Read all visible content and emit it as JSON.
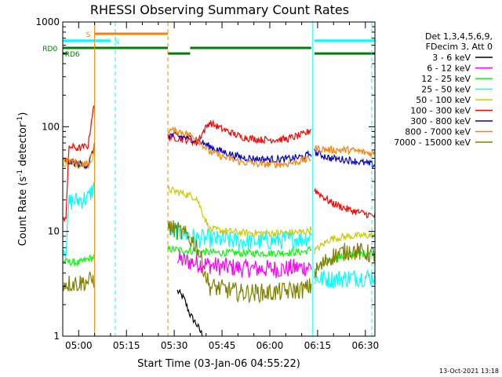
{
  "chart_data": {
    "type": "line",
    "title": "RHESSI Observing Summary Count Rates",
    "xlabel": "Start Time (03-Jan-06 04:55:22)",
    "ylabel": "Count Rate (s",
    "ylabel_sup": "-1",
    "ylabel_tail": " detector",
    "ylabel_close": ")",
    "y_scale": "log",
    "ylim": [
      1,
      1000
    ],
    "y_ticks": [
      {
        "v": 1,
        "label": "1"
      },
      {
        "v": 10,
        "label": "10"
      },
      {
        "v": 100,
        "label": "100"
      },
      {
        "v": 1000,
        "label": "1000"
      }
    ],
    "xlim_min": [
      0,
      98
    ],
    "x_ticks": [
      {
        "m": 5,
        "label": "05:00"
      },
      {
        "m": 20,
        "label": "05:15"
      },
      {
        "m": 35,
        "label": "05:30"
      },
      {
        "m": 50,
        "label": "05:45"
      },
      {
        "m": 65,
        "label": "06:00"
      },
      {
        "m": 80,
        "label": "06:15"
      },
      {
        "m": 95,
        "label": "06:30"
      }
    ],
    "legend_header": [
      "Det 1,3,4,5,6,9,",
      "FDecim 3, Att 0"
    ],
    "timestamp": "13-Oct-2021 13:18",
    "gaps_min": [
      [
        10,
        33
      ],
      [
        78,
        79
      ]
    ],
    "segments": [
      [
        0,
        10
      ],
      [
        33,
        78
      ],
      [
        79,
        98
      ]
    ],
    "flags": [
      {
        "label": "S",
        "color": "#ff8000",
        "y": 772,
        "x0": 10,
        "x1": 33,
        "label_at": 8
      },
      {
        "label": "N",
        "color": "#00ffff",
        "y": 663,
        "x0": 0,
        "x1": 15,
        "label_at": 17
      },
      {
        "label": "N",
        "color": "#00ffff",
        "y": 663,
        "x0": 79,
        "x1": 98,
        "label_at": null
      },
      {
        "label": "RD0",
        "color": "#008000",
        "y": 565,
        "x0": 0,
        "x1": 33,
        "label_at": -4
      },
      {
        "label": "RD0",
        "color": "#008000",
        "y": 565,
        "x0": 40,
        "x1": 78,
        "label_at": null
      },
      {
        "label": "RD6",
        "color": "#008000",
        "y": 500,
        "x0": 0,
        "x1": 1.5,
        "label_at": 3
      },
      {
        "label": "RD6",
        "color": "#008000",
        "y": 500,
        "x0": 33,
        "x1": 40,
        "label_at": null
      },
      {
        "label": "RD6",
        "color": "#008000",
        "y": 500,
        "x0": 79,
        "x1": 98,
        "label_at": null
      }
    ],
    "vlines": [
      {
        "m": 10,
        "color": "#ff8000",
        "dash": false
      },
      {
        "m": 16.5,
        "color": "#00ffff",
        "dash": true
      },
      {
        "m": 33,
        "color": "#ff8000",
        "dash": true
      },
      {
        "m": 78.5,
        "color": "#00ffff",
        "dash": false
      },
      {
        "m": 97,
        "color": "#00ffff",
        "dash": true
      }
    ],
    "series": [
      {
        "name": "3 - 6 keV",
        "color": "#000000",
        "pts": [
          [
            36,
            2.7
          ],
          [
            38,
            2.3
          ],
          [
            40,
            1.6
          ],
          [
            42,
            1.3
          ],
          [
            44,
            1.0
          ]
        ]
      },
      {
        "name": "6 - 12 keV",
        "color": "#ff00ff",
        "pts": [
          [
            36,
            5.4
          ],
          [
            42,
            5.0
          ],
          [
            50,
            4.6
          ],
          [
            60,
            4.4
          ],
          [
            70,
            4.4
          ],
          [
            78,
            4.6
          ]
        ]
      },
      {
        "name": "12 - 25 keV",
        "color": "#00ff00",
        "pts": [
          [
            0,
            5.2
          ],
          [
            5,
            5.0
          ],
          [
            9,
            5.6
          ],
          [
            33.5,
            6.8
          ],
          [
            38,
            6.6
          ],
          [
            46,
            6.3
          ],
          [
            56,
            6.2
          ],
          [
            66,
            6.2
          ],
          [
            76,
            6.4
          ],
          [
            78,
            6.8
          ],
          [
            79,
            4.3
          ],
          [
            84,
            5.4
          ],
          [
            90,
            6.0
          ],
          [
            98,
            6.3
          ]
        ]
      },
      {
        "name": "25 - 50 keV",
        "color": "#00ffff",
        "pts": [
          [
            0,
            7.0
          ],
          [
            1,
            6.8
          ],
          [
            2,
            19
          ],
          [
            5,
            20
          ],
          [
            8,
            21
          ],
          [
            10,
            27
          ],
          [
            33.5,
            10.5
          ],
          [
            38,
            9.6
          ],
          [
            42,
            8.6
          ],
          [
            46,
            8.5
          ],
          [
            56,
            8.0
          ],
          [
            66,
            8.1
          ],
          [
            76,
            8.6
          ],
          [
            78,
            9.0
          ],
          [
            79,
            3.6
          ],
          [
            84,
            3.5
          ],
          [
            90,
            3.6
          ],
          [
            98,
            3.7
          ]
        ]
      },
      {
        "name": "50 - 100 keV",
        "color": "#cccc00",
        "pts": [
          [
            0,
            45
          ],
          [
            5,
            43
          ],
          [
            8,
            42
          ],
          [
            10,
            58
          ],
          [
            33.5,
            25
          ],
          [
            38,
            23
          ],
          [
            42,
            21
          ],
          [
            46,
            10.5
          ],
          [
            56,
            9.7
          ],
          [
            66,
            9.6
          ],
          [
            76,
            9.9
          ],
          [
            78,
            10.5
          ],
          [
            79,
            6.5
          ],
          [
            84,
            8.5
          ],
          [
            90,
            9.0
          ],
          [
            98,
            9.2
          ]
        ]
      },
      {
        "name": "100 - 300 keV",
        "color": "#ff0000",
        "pts": [
          [
            0,
            13
          ],
          [
            1,
            14
          ],
          [
            2,
            65
          ],
          [
            5,
            62
          ],
          [
            8,
            66
          ],
          [
            9.5,
            150
          ],
          [
            33.5,
            80
          ],
          [
            38,
            76
          ],
          [
            42,
            71
          ],
          [
            46,
            110
          ],
          [
            50,
            95
          ],
          [
            56,
            80
          ],
          [
            62,
            75
          ],
          [
            70,
            76
          ],
          [
            76,
            85
          ],
          [
            78,
            95
          ],
          [
            79,
            25
          ],
          [
            84,
            19
          ],
          [
            90,
            16
          ],
          [
            98,
            14
          ]
        ]
      },
      {
        "name": "300 - 800 keV",
        "color": "#0000cc",
        "pts": [
          [
            0,
            48
          ],
          [
            5,
            44
          ],
          [
            8,
            43
          ],
          [
            10,
            65
          ],
          [
            33.5,
            83
          ],
          [
            38,
            80
          ],
          [
            42,
            75
          ],
          [
            46,
            65
          ],
          [
            50,
            58
          ],
          [
            56,
            51
          ],
          [
            62,
            49
          ],
          [
            70,
            49
          ],
          [
            76,
            52
          ],
          [
            78,
            56
          ],
          [
            79,
            57
          ],
          [
            84,
            50
          ],
          [
            90,
            48
          ],
          [
            98,
            43
          ]
        ]
      },
      {
        "name": "800 - 7000 keV",
        "color": "#ff8000",
        "pts": [
          [
            0,
            49
          ],
          [
            5,
            45
          ],
          [
            8,
            44
          ],
          [
            10,
            66
          ],
          [
            33.5,
            93
          ],
          [
            38,
            88
          ],
          [
            42,
            78
          ],
          [
            46,
            58
          ],
          [
            50,
            52
          ],
          [
            56,
            46
          ],
          [
            62,
            44
          ],
          [
            70,
            44
          ],
          [
            76,
            48
          ],
          [
            78,
            50
          ],
          [
            79,
            62
          ],
          [
            84,
            60
          ],
          [
            90,
            60
          ],
          [
            98,
            55
          ]
        ]
      },
      {
        "name": "7000 - 15000 keV",
        "color": "#808000",
        "pts": [
          [
            0,
            3.2
          ],
          [
            5,
            3.2
          ],
          [
            9,
            3.4
          ],
          [
            33.5,
            11
          ],
          [
            38,
            9.5
          ],
          [
            42,
            7.5
          ],
          [
            46,
            3.0
          ],
          [
            56,
            2.6
          ],
          [
            66,
            2.6
          ],
          [
            76,
            2.8
          ],
          [
            78,
            3.0
          ],
          [
            79,
            4.0
          ],
          [
            84,
            5.7
          ],
          [
            90,
            6.6
          ],
          [
            98,
            6.0
          ]
        ]
      }
    ]
  }
}
